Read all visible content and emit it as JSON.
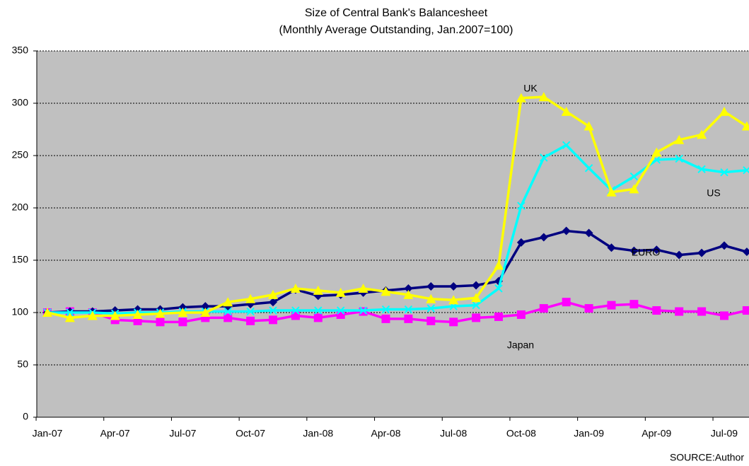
{
  "chart_data": {
    "type": "line",
    "title": "Size of Central Bank's Balancesheet",
    "subtitle": "(Monthly Average Outstanding, Jan.2007=100)",
    "source": "SOURCE:Author",
    "categories": [
      "Jan-07",
      null,
      null,
      "Apr-07",
      null,
      null,
      "Jul-07",
      null,
      null,
      "Oct-07",
      null,
      null,
      "Jan-08",
      null,
      null,
      "Apr-08",
      null,
      null,
      "Jul-08",
      null,
      null,
      "Oct-08",
      null,
      null,
      "Jan-09",
      null,
      null,
      "Apr-09",
      null,
      null,
      "Jul-09",
      null
    ],
    "ylim": [
      0,
      350
    ],
    "yticks": [
      0,
      50,
      100,
      150,
      200,
      250,
      300,
      350
    ],
    "grid": true,
    "series": [
      {
        "name": "EURO",
        "color": "#000080",
        "marker": "diamond",
        "values": [
          100,
          101,
          101,
          102,
          103,
          103,
          105,
          106,
          106,
          108,
          110,
          122,
          116,
          117,
          119,
          121,
          123,
          125,
          125,
          126,
          130,
          167,
          172,
          178,
          176,
          162,
          159,
          160,
          155,
          157,
          164,
          158
        ]
      },
      {
        "name": "UK",
        "color": "#ffff00",
        "marker": "triangle",
        "values": [
          100,
          95,
          97,
          97,
          98,
          99,
          100,
          100,
          110,
          113,
          117,
          123,
          121,
          119,
          123,
          120,
          117,
          113,
          112,
          114,
          145,
          305,
          306,
          292,
          278,
          215,
          218,
          253,
          265,
          270,
          292,
          278
        ]
      },
      {
        "name": "US",
        "color": "#00ffff",
        "marker": "x",
        "values": [
          100,
          100,
          100,
          99,
          100,
          100,
          101,
          101,
          101,
          101,
          102,
          102,
          102,
          102,
          102,
          103,
          103,
          104,
          106,
          107,
          123,
          202,
          248,
          260,
          238,
          217,
          230,
          246,
          247,
          237,
          234,
          236
        ]
      },
      {
        "name": "Japan",
        "color": "#ff00ff",
        "marker": "square",
        "values": [
          100,
          101,
          100,
          93,
          92,
          91,
          91,
          95,
          95,
          92,
          93,
          97,
          95,
          98,
          101,
          94,
          94,
          92,
          91,
          95,
          96,
          98,
          104,
          110,
          104,
          107,
          108,
          102,
          101,
          101,
          97,
          102
        ]
      }
    ]
  }
}
